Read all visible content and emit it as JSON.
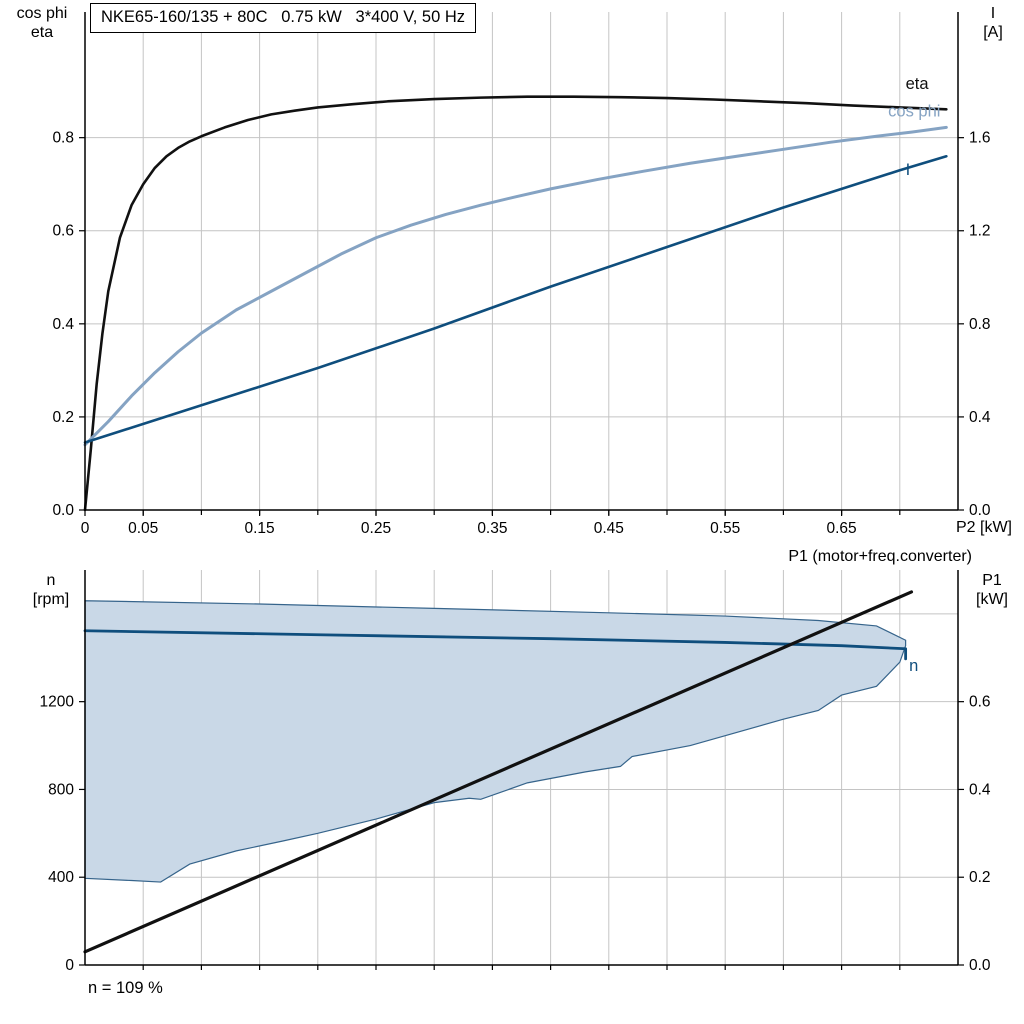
{
  "chart_data": [
    {
      "type": "line",
      "title": "NKE65-160/135 + 80C   0.75 kW   3*400 V, 50 Hz",
      "x_axis_label": "P2 [kW]",
      "x_range": [
        0,
        0.75
      ],
      "grid_color": "#c4c4c4",
      "x_grid": [
        0.05,
        0.1,
        0.15,
        0.2,
        0.25,
        0.3,
        0.35,
        0.4,
        0.45,
        0.5,
        0.55,
        0.6,
        0.65,
        0.7
      ],
      "y_grid": [
        0.2,
        0.4,
        0.6,
        0.8
      ],
      "x_ticks": [
        {
          "v": 0,
          "label": "0"
        },
        {
          "v": 0.05,
          "label": "0.05"
        },
        {
          "v": 0.15,
          "label": "0.15"
        },
        {
          "v": 0.25,
          "label": "0.25"
        },
        {
          "v": 0.35,
          "label": "0.35"
        },
        {
          "v": 0.45,
          "label": "0.45"
        },
        {
          "v": 0.55,
          "label": "0.55"
        },
        {
          "v": 0.65,
          "label": "0.65"
        }
      ],
      "left_axis": {
        "label_lines": [
          "cos phi",
          "eta"
        ],
        "range": [
          0,
          1.07
        ],
        "ticks": [
          {
            "v": 0.0,
            "label": "0.0"
          },
          {
            "v": 0.2,
            "label": "0.2"
          },
          {
            "v": 0.4,
            "label": "0.4"
          },
          {
            "v": 0.6,
            "label": "0.6"
          },
          {
            "v": 0.8,
            "label": "0.8"
          }
        ]
      },
      "right_axis": {
        "label_lines": [
          "I",
          "[A]"
        ],
        "range": [
          0,
          2.14
        ],
        "ticks": [
          {
            "v": 0.0,
            "label": "0.0"
          },
          {
            "v": 0.4,
            "label": "0.4"
          },
          {
            "v": 0.8,
            "label": "0.8"
          },
          {
            "v": 1.2,
            "label": "1.2"
          },
          {
            "v": 1.6,
            "label": "1.6"
          }
        ]
      },
      "series": [
        {
          "name": "eta",
          "axis": "left",
          "color": "#111111",
          "width": 2.6,
          "label": {
            "text": "eta",
            "x": 0.705,
            "y": 0.905,
            "color": "#111111"
          },
          "points": [
            [
              0,
              0
            ],
            [
              0.005,
              0.13
            ],
            [
              0.01,
              0.27
            ],
            [
              0.015,
              0.38
            ],
            [
              0.02,
              0.47
            ],
            [
              0.03,
              0.585
            ],
            [
              0.04,
              0.655
            ],
            [
              0.05,
              0.7
            ],
            [
              0.06,
              0.735
            ],
            [
              0.07,
              0.76
            ],
            [
              0.08,
              0.778
            ],
            [
              0.09,
              0.792
            ],
            [
              0.1,
              0.803
            ],
            [
              0.12,
              0.822
            ],
            [
              0.14,
              0.838
            ],
            [
              0.16,
              0.85
            ],
            [
              0.18,
              0.858
            ],
            [
              0.2,
              0.865
            ],
            [
              0.23,
              0.872
            ],
            [
              0.26,
              0.878
            ],
            [
              0.3,
              0.883
            ],
            [
              0.34,
              0.886
            ],
            [
              0.38,
              0.888
            ],
            [
              0.42,
              0.888
            ],
            [
              0.46,
              0.887
            ],
            [
              0.5,
              0.885
            ],
            [
              0.54,
              0.882
            ],
            [
              0.58,
              0.878
            ],
            [
              0.62,
              0.874
            ],
            [
              0.66,
              0.869
            ],
            [
              0.7,
              0.865
            ],
            [
              0.74,
              0.861
            ]
          ]
        },
        {
          "name": "cos phi",
          "axis": "left",
          "color": "#85a3c3",
          "width": 3,
          "label": {
            "text": "cos phi",
            "x": 0.69,
            "y": 0.845,
            "color": "#85a3c3"
          },
          "points": [
            [
              0,
              0.14
            ],
            [
              0.02,
              0.19
            ],
            [
              0.04,
              0.245
            ],
            [
              0.06,
              0.295
            ],
            [
              0.08,
              0.34
            ],
            [
              0.1,
              0.38
            ],
            [
              0.13,
              0.43
            ],
            [
              0.16,
              0.47
            ],
            [
              0.19,
              0.51
            ],
            [
              0.22,
              0.55
            ],
            [
              0.25,
              0.585
            ],
            [
              0.28,
              0.612
            ],
            [
              0.31,
              0.635
            ],
            [
              0.34,
              0.655
            ],
            [
              0.37,
              0.673
            ],
            [
              0.4,
              0.69
            ],
            [
              0.44,
              0.71
            ],
            [
              0.48,
              0.728
            ],
            [
              0.52,
              0.745
            ],
            [
              0.56,
              0.76
            ],
            [
              0.6,
              0.775
            ],
            [
              0.64,
              0.79
            ],
            [
              0.68,
              0.803
            ],
            [
              0.71,
              0.812
            ],
            [
              0.74,
              0.822
            ]
          ]
        },
        {
          "name": "I",
          "axis": "right",
          "color": "#0f4e7d",
          "width": 2.6,
          "label": {
            "text": "I",
            "x": 0.705,
            "y": 1.44,
            "color": "#0f4e7d"
          },
          "points": [
            [
              0,
              0.29
            ],
            [
              0.1,
              0.45
            ],
            [
              0.2,
              0.61
            ],
            [
              0.3,
              0.78
            ],
            [
              0.4,
              0.96
            ],
            [
              0.5,
              1.13
            ],
            [
              0.6,
              1.3
            ],
            [
              0.7,
              1.46
            ],
            [
              0.74,
              1.52
            ]
          ]
        }
      ]
    },
    {
      "type": "line",
      "p1_line_label": "P1 (motor+freq.converter)",
      "footnote": "n = 109 %",
      "x_range": [
        0,
        0.75
      ],
      "grid_color": "#c4c4c4",
      "x_grid": [
        0.05,
        0.1,
        0.15,
        0.2,
        0.25,
        0.3,
        0.35,
        0.4,
        0.45,
        0.5,
        0.55,
        0.6,
        0.65,
        0.7
      ],
      "y_grid": [
        400,
        800,
        1200,
        1600
      ],
      "x_ticks": [],
      "left_axis": {
        "label_lines": [
          "n",
          "[rpm]"
        ],
        "range": [
          0,
          1800
        ],
        "ticks": [
          {
            "v": 0,
            "label": "0"
          },
          {
            "v": 400,
            "label": "400"
          },
          {
            "v": 800,
            "label": "800"
          },
          {
            "v": 1200,
            "label": "1200"
          }
        ]
      },
      "right_axis": {
        "label_lines": [
          "P1",
          "[kW]"
        ],
        "range": [
          0,
          0.9
        ],
        "ticks": [
          {
            "v": 0.0,
            "label": "0.0"
          },
          {
            "v": 0.2,
            "label": "0.2"
          },
          {
            "v": 0.4,
            "label": "0.4"
          },
          {
            "v": 0.6,
            "label": "0.6"
          }
        ]
      },
      "series": [
        {
          "name": "speed-range-band",
          "type": "band",
          "axis": "left",
          "fill": "#c9d8e7",
          "stroke": "#36648b",
          "stroke_width": 1.2,
          "upper": [
            [
              0,
              1660
            ],
            [
              0.15,
              1645
            ],
            [
              0.3,
              1625
            ],
            [
              0.45,
              1605
            ],
            [
              0.55,
              1590
            ],
            [
              0.63,
              1570
            ],
            [
              0.68,
              1545
            ],
            [
              0.705,
              1480
            ]
          ],
          "lower": [
            [
              0,
              395
            ],
            [
              0.04,
              385
            ],
            [
              0.065,
              378
            ],
            [
              0.09,
              460
            ],
            [
              0.13,
              520
            ],
            [
              0.17,
              565
            ],
            [
              0.2,
              600
            ],
            [
              0.25,
              665
            ],
            [
              0.3,
              740
            ],
            [
              0.33,
              760
            ],
            [
              0.34,
              755
            ],
            [
              0.38,
              830
            ],
            [
              0.43,
              880
            ],
            [
              0.46,
              905
            ],
            [
              0.47,
              950
            ],
            [
              0.52,
              1000
            ],
            [
              0.55,
              1045
            ],
            [
              0.6,
              1120
            ],
            [
              0.63,
              1160
            ],
            [
              0.65,
              1230
            ],
            [
              0.68,
              1270
            ],
            [
              0.7,
              1380
            ],
            [
              0.705,
              1455
            ]
          ]
        },
        {
          "name": "n",
          "axis": "left",
          "color": "#0f4e7d",
          "width": 2.8,
          "label": {
            "text": "n",
            "x": 0.708,
            "y": 1340,
            "color": "#0f4e7d"
          },
          "points": [
            [
              0,
              1523
            ],
            [
              0.2,
              1505
            ],
            [
              0.4,
              1487
            ],
            [
              0.55,
              1470
            ],
            [
              0.65,
              1455
            ],
            [
              0.705,
              1441
            ],
            [
              0.705,
              1395
            ]
          ]
        },
        {
          "name": "P1",
          "axis": "right",
          "color": "#111111",
          "width": 3.2,
          "points": [
            [
              0,
              0.03
            ],
            [
              0.71,
              0.85
            ]
          ]
        }
      ]
    }
  ]
}
